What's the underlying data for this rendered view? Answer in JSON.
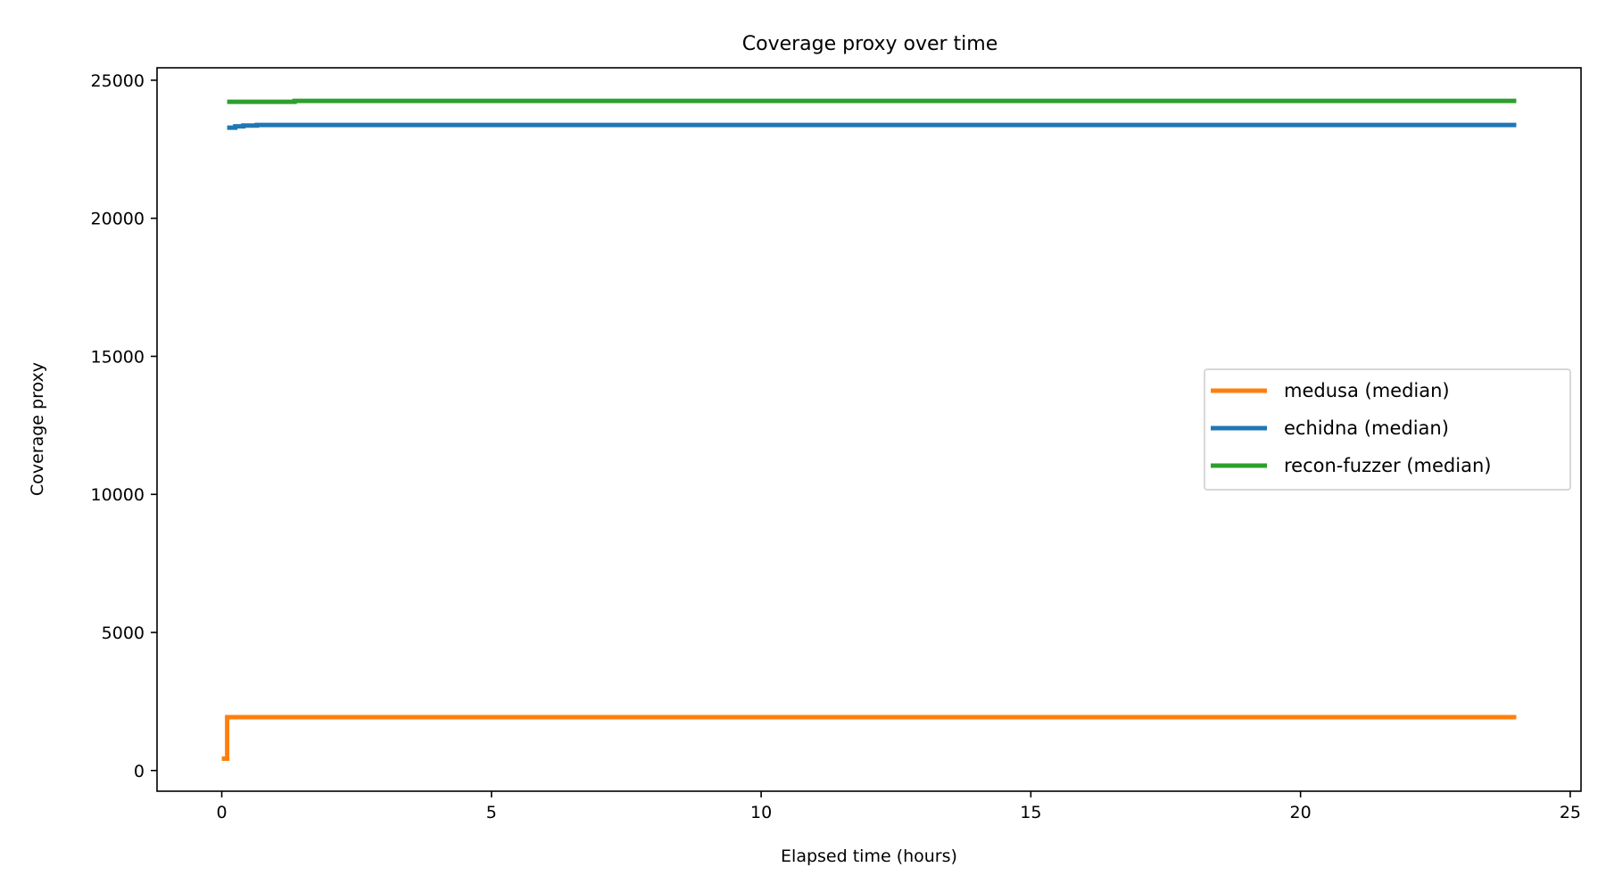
{
  "chart_data": {
    "type": "line",
    "title": "Coverage proxy over time",
    "xlabel": "Elapsed time (hours)",
    "ylabel": "Coverage proxy",
    "xlim": [
      -1.2,
      25.2
    ],
    "ylim": [
      -750,
      25450
    ],
    "xticks": [
      0,
      5,
      10,
      15,
      20,
      25
    ],
    "yticks": [
      0,
      5000,
      10000,
      15000,
      20000,
      25000
    ],
    "grid": false,
    "legend_position": "center-right",
    "series": [
      {
        "name": "medusa (median)",
        "color": "#ff7f0e",
        "step": true,
        "x": [
          0.0,
          0.1,
          0.1,
          24.0
        ],
        "y": [
          430,
          430,
          1930,
          1930
        ]
      },
      {
        "name": "echidna (median)",
        "color": "#1f77b4",
        "step": true,
        "x": [
          0.1,
          0.25,
          0.4,
          0.65,
          24.0
        ],
        "y": [
          23280,
          23330,
          23360,
          23380,
          23380
        ]
      },
      {
        "name": "recon-fuzzer (median)",
        "color": "#2ca02c",
        "step": true,
        "x": [
          0.1,
          1.35,
          24.0
        ],
        "y": [
          24220,
          24250,
          24250
        ]
      }
    ]
  }
}
